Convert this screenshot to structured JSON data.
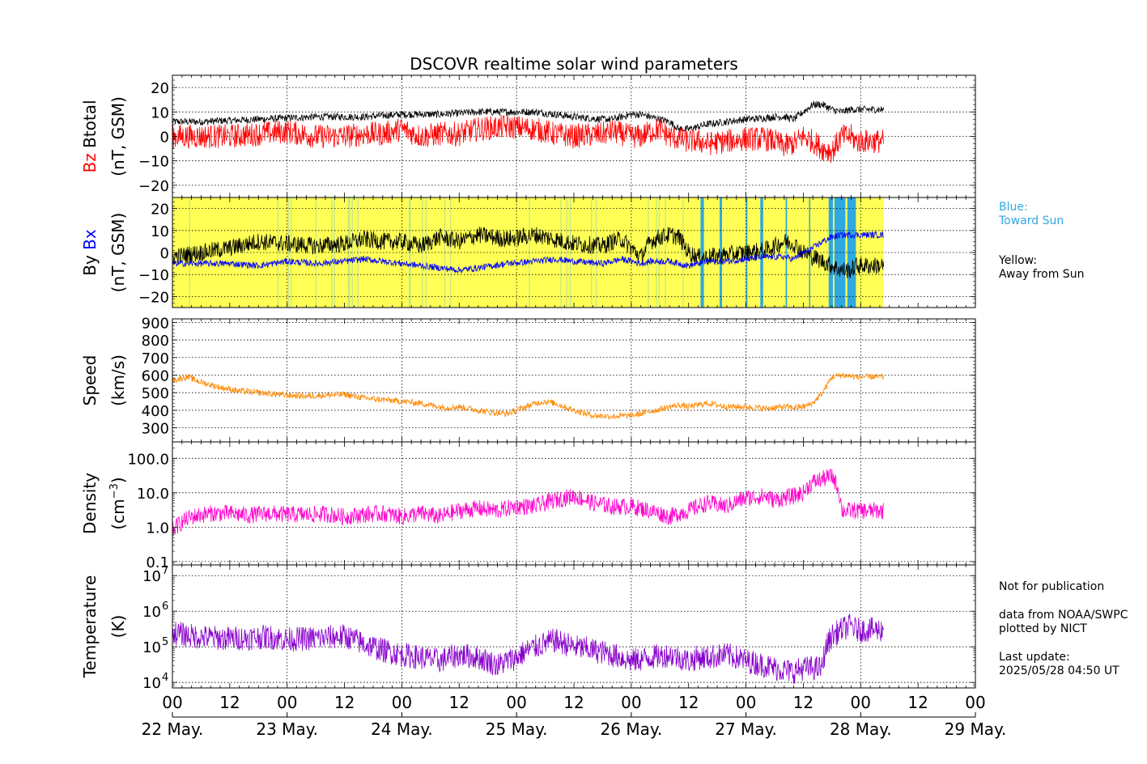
{
  "chart_data": {
    "type": "line",
    "title": "DSCOVR realtime solar wind parameters",
    "x_tick_hours": [
      "00",
      "12",
      "00",
      "12",
      "00",
      "12",
      "00",
      "12",
      "00",
      "12",
      "00",
      "12",
      "00",
      "12",
      "00"
    ],
    "x_date_labels": [
      "22 May.",
      "23 May.",
      "24 May.",
      "25 May.",
      "26 May.",
      "27 May.",
      "28 May.",
      "29 May."
    ],
    "xlim": [
      "2025-05-22 00:00",
      "2025-05-29 00:00"
    ],
    "data_end": "2025-05-28 04:50",
    "grid": true,
    "panels": [
      {
        "id": "mag",
        "ylabel_parts": [
          {
            "text": "Bz",
            "color": "#ff0000"
          },
          {
            "text": "Btotal",
            "color": "#000000"
          }
        ],
        "ylabel2": "(nT, GSM)",
        "ylim": [
          -25,
          25
        ],
        "yticks": [
          20,
          10,
          0,
          -10,
          -20
        ],
        "ytick_labels": [
          "20",
          "10",
          "0",
          "−10",
          "−20"
        ],
        "series": [
          {
            "name": "Btotal",
            "color": "#000000",
            "t": [
              0,
              6,
              12,
              18,
              24,
              30,
              36,
              40,
              44,
              48,
              52,
              56,
              60,
              64,
              70,
              76,
              80,
              84,
              90,
              92,
              94,
              96,
              98,
              100,
              102,
              104,
              106,
              108,
              110,
              112,
              116,
              120,
              124,
              126,
              128,
              130,
              132,
              134,
              136,
              138,
              140,
              142,
              143
            ],
            "y": [
              6,
              6,
              6.5,
              7,
              7.5,
              8,
              8,
              8,
              8.5,
              9,
              9,
              9,
              9.5,
              10,
              10,
              10,
              9,
              8,
              7,
              7,
              8,
              9,
              9,
              8,
              7,
              6,
              3,
              3,
              4,
              5,
              6,
              7,
              7.5,
              8,
              8,
              7,
              10,
              13,
              13,
              11,
              10,
              11,
              11
            ],
            "noise": 1.5
          },
          {
            "name": "Bz",
            "color": "#ff0000",
            "t": [
              0,
              6,
              12,
              18,
              24,
              30,
              36,
              40,
              44,
              48,
              52,
              56,
              60,
              64,
              70,
              76,
              80,
              84,
              90,
              92,
              94,
              96,
              98,
              100,
              102,
              104,
              106,
              108,
              110,
              112,
              116,
              120,
              124,
              126,
              128,
              130,
              132,
              134,
              136,
              138,
              140,
              142,
              143
            ],
            "y": [
              0,
              0,
              0,
              1,
              2,
              0,
              0,
              1,
              1,
              3,
              0,
              1,
              1,
              3,
              4,
              3,
              1,
              0,
              1,
              2,
              1,
              0,
              0,
              2,
              3,
              0,
              -1,
              -2,
              -2,
              -3,
              -2,
              -1,
              -1,
              -2,
              -4,
              -3,
              0,
              -2,
              -5,
              -6,
              0,
              0,
              -2
            ],
            "noise": 5
          }
        ]
      },
      {
        "id": "bybx",
        "ylabel_parts": [
          {
            "text": "By",
            "color": "#000000"
          },
          {
            "text": "Bx",
            "color": "#0000ff"
          }
        ],
        "ylabel2": "(nT, GSM)",
        "ylim": [
          -25,
          25
        ],
        "yticks": [
          20,
          10,
          0,
          -10,
          -20
        ],
        "ytick_labels": [
          "20",
          "10",
          "0",
          "−10",
          "−20"
        ],
        "sector_colors": {
          "away": "#ffff55",
          "toward": "#30a8e0"
        },
        "toward_intervals": [
          [
            110.5,
            111.2
          ],
          [
            114.5,
            115
          ],
          [
            120,
            120.3
          ],
          [
            123,
            123.6
          ],
          [
            128.3,
            128.6
          ],
          [
            133.2,
            133.4
          ],
          [
            137.3,
            138.2
          ],
          [
            138.5,
            140.8
          ],
          [
            141.2,
            143
          ]
        ],
        "series": [
          {
            "name": "By",
            "color": "#000000",
            "t": [
              0,
              6,
              12,
              18,
              24,
              30,
              36,
              40,
              44,
              48,
              52,
              56,
              60,
              64,
              70,
              76,
              80,
              84,
              90,
              92,
              94,
              96,
              98,
              100,
              102,
              104,
              106,
              108,
              110,
              112,
              116,
              120,
              124,
              126,
              128,
              130,
              132,
              134,
              136,
              138,
              140,
              142,
              143
            ],
            "y": [
              -2,
              0,
              2,
              5,
              4,
              3,
              4,
              6,
              5,
              5,
              3,
              7,
              5,
              8,
              6,
              8,
              6,
              4,
              3,
              5,
              6,
              2,
              -2,
              5,
              7,
              8,
              7,
              0,
              -2,
              -2,
              -1,
              0,
              1,
              3,
              5,
              4,
              0,
              -2,
              -4,
              -6,
              -8,
              -8,
              -6
            ],
            "noise": 4
          },
          {
            "name": "Bx",
            "color": "#0000ff",
            "t": [
              0,
              6,
              12,
              18,
              24,
              30,
              36,
              40,
              44,
              48,
              52,
              56,
              60,
              64,
              70,
              76,
              80,
              84,
              90,
              92,
              94,
              96,
              98,
              100,
              102,
              104,
              106,
              108,
              110,
              112,
              116,
              120,
              124,
              126,
              128,
              130,
              132,
              134,
              136,
              138,
              140,
              142,
              143
            ],
            "y": [
              -5,
              -5,
              -5,
              -6,
              -4,
              -5,
              -4,
              -3,
              -4,
              -5,
              -6,
              -7,
              -8,
              -7,
              -5,
              -4,
              -3,
              -4,
              -5,
              -4,
              -3,
              -4,
              -5,
              -4,
              -4,
              -4,
              -5,
              -6,
              -5,
              -4,
              -4,
              -3,
              -2,
              -2,
              -2,
              -3,
              0,
              2,
              5,
              7,
              8,
              8,
              8
            ],
            "noise": 1.5
          }
        ]
      },
      {
        "id": "speed",
        "ylabel": "Speed",
        "ylabel2": "(km/s)",
        "ylim": [
          220,
          920
        ],
        "yticks": [
          900,
          800,
          700,
          600,
          500,
          400,
          300
        ],
        "ytick_labels": [
          "900",
          "800",
          "700",
          "600",
          "500",
          "400",
          "300"
        ],
        "series": [
          {
            "name": "Speed",
            "color": "#ff8800",
            "t": [
              0,
              3,
              6,
              10,
              14,
              18,
              22,
              24,
              28,
              32,
              36,
              40,
              44,
              48,
              52,
              56,
              58,
              60,
              62,
              64,
              66,
              68,
              70,
              72,
              74,
              76,
              78,
              80,
              84,
              88,
              92,
              96,
              98,
              100,
              102,
              104,
              106,
              108,
              110,
              112,
              114,
              116,
              118,
              120,
              124,
              128,
              130,
              132,
              134,
              136,
              138,
              140,
              143
            ],
            "y": [
              570,
              590,
              560,
              530,
              510,
              500,
              490,
              485,
              480,
              485,
              490,
              470,
              460,
              450,
              440,
              420,
              415,
              420,
              410,
              400,
              390,
              385,
              380,
              400,
              420,
              440,
              450,
              440,
              400,
              370,
              365,
              370,
              380,
              395,
              405,
              420,
              430,
              420,
              430,
              440,
              430,
              420,
              420,
              420,
              410,
              420,
              415,
              420,
              440,
              500,
              590,
              600,
              590
            ],
            "noise": 18
          }
        ]
      },
      {
        "id": "density",
        "ylabel": "Density",
        "ylabel2_main": "(cm",
        "ylabel2_sup": "−3",
        "ylabel2_end": ")",
        "log": true,
        "ylim": [
          0.08,
          300
        ],
        "yticks": [
          100,
          10,
          1,
          0.1
        ],
        "ytick_labels": [
          "100.0",
          "10.0",
          "1.0",
          "0.1"
        ],
        "series": [
          {
            "name": "Density",
            "color": "#ff00cc",
            "t": [
              0,
              4,
              8,
              12,
              16,
              20,
              24,
              28,
              32,
              36,
              40,
              44,
              48,
              52,
              56,
              60,
              64,
              68,
              72,
              76,
              80,
              84,
              88,
              92,
              96,
              100,
              104,
              108,
              110,
              112,
              116,
              120,
              124,
              126,
              128,
              130,
              132,
              134,
              136,
              138,
              140,
              142,
              143
            ],
            "y": [
              0.8,
              2,
              2.5,
              2.5,
              2.2,
              2.5,
              2.3,
              2.3,
              2.4,
              2,
              2.3,
              2.5,
              2,
              2.5,
              2,
              3,
              3.5,
              3,
              4,
              4,
              6,
              8,
              5,
              4,
              4,
              3,
              2,
              3,
              4,
              5,
              4,
              7,
              8,
              6,
              7,
              8,
              10,
              20,
              25,
              30,
              3,
              3,
              3
            ],
            "noise": 0.25
          }
        ]
      },
      {
        "id": "temperature",
        "ylabel": "Temperature",
        "ylabel2": "(K)",
        "log": true,
        "ylim": [
          7000,
          20000000
        ],
        "yticks": [
          10000000,
          1000000,
          100000,
          10000
        ],
        "ytick_labels": [
          {
            "b": "10",
            "e": "7"
          },
          {
            "b": "10",
            "e": "6"
          },
          {
            "b": "10",
            "e": "5"
          },
          {
            "b": "10",
            "e": "4"
          }
        ],
        "series": [
          {
            "name": "Temperature",
            "color": "#8800cc",
            "t": [
              0,
              4,
              8,
              12,
              16,
              20,
              24,
              28,
              32,
              36,
              40,
              44,
              48,
              52,
              56,
              60,
              64,
              68,
              72,
              76,
              80,
              84,
              88,
              92,
              96,
              100,
              104,
              108,
              110,
              112,
              116,
              120,
              124,
              126,
              128,
              130,
              132,
              134,
              136,
              138,
              140,
              142,
              143
            ],
            "y": [
              250000,
              200000,
              180000,
              170000,
              180000,
              190000,
              160000,
              170000,
              180000,
              200000,
              120000,
              80000,
              60000,
              50000,
              40000,
              60000,
              50000,
              30000,
              50000,
              100000,
              150000,
              100000,
              80000,
              60000,
              40000,
              50000,
              60000,
              40000,
              50000,
              50000,
              60000,
              40000,
              30000,
              25000,
              22000,
              20000,
              25000,
              25000,
              25000,
              200000,
              300000,
              400000,
              300000
            ],
            "noise": 0.35
          }
        ]
      }
    ]
  },
  "side_labels": {
    "blue": "Blue:\nToward Sun",
    "yellow": "Yellow:\nAway from Sun",
    "notice": "Not for publication",
    "source": "data from NOAA/SWPC\nplotted by NICT",
    "update": "Last update:\n2025/05/28 04:50 UT"
  },
  "colors": {
    "blue_label": "#30a8e0",
    "text": "#000000"
  }
}
